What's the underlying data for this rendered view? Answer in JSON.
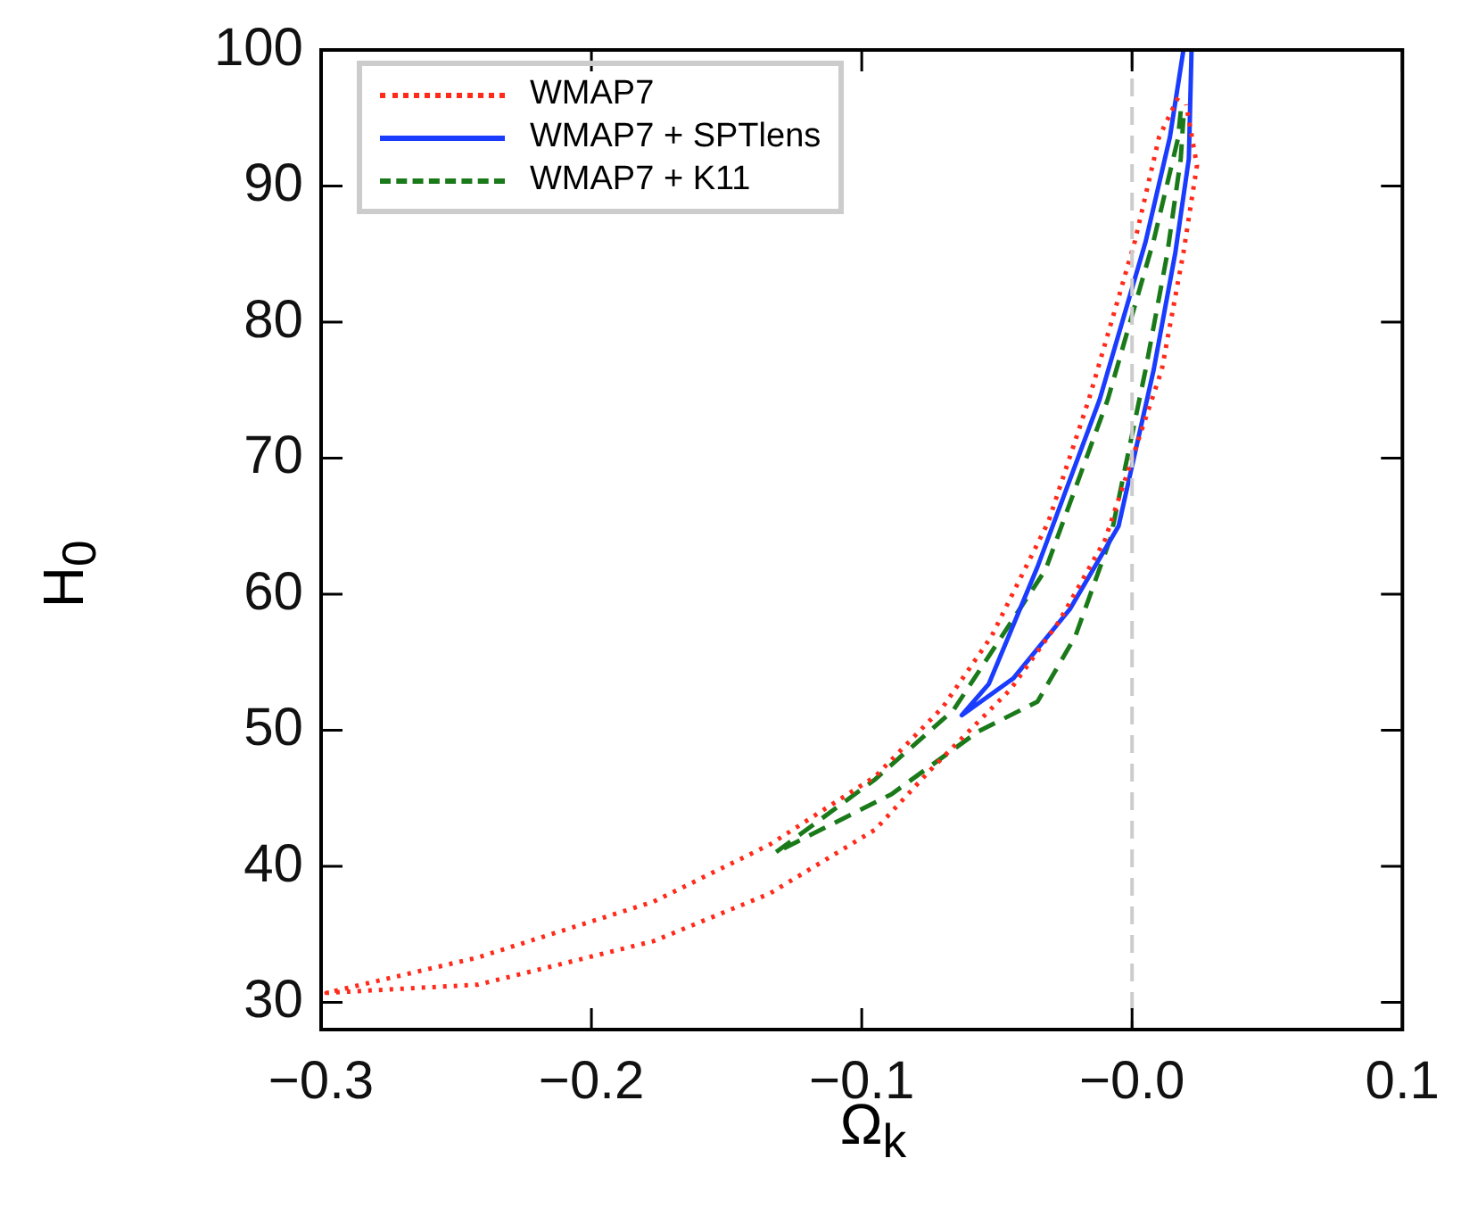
{
  "chart_data": {
    "type": "line",
    "xlabel": "Ω$_{k}$",
    "ylabel": "H$_{0}$",
    "xlim": [
      -0.3,
      0.1
    ],
    "ylim": [
      28,
      100
    ],
    "xticks": [
      {
        "value": -0.3,
        "label": "−0.3"
      },
      {
        "value": -0.2,
        "label": "−0.2"
      },
      {
        "value": -0.1,
        "label": "−0.1"
      },
      {
        "value": 0,
        "label": "−0.0"
      },
      0.1
    ],
    "yticks": [
      30,
      40,
      50,
      60,
      70,
      80,
      90,
      100
    ],
    "grid": false,
    "legend": "top left",
    "marker": "none",
    "ref_lines": [
      {
        "axis": "x",
        "value": 0,
        "color": "#cccccc",
        "line_style": "dashed"
      }
    ],
    "series": [
      {
        "name": "WMAP7",
        "color": "#ff2a1a",
        "line_style": "dotted",
        "x": [
          0.017,
          0.01,
          0.001,
          -0.016,
          -0.031,
          -0.052,
          -0.07,
          -0.095,
          -0.134,
          -0.177,
          -0.242,
          -0.298,
          -0.242,
          -0.177,
          -0.134,
          -0.095,
          -0.075,
          -0.045,
          -0.027,
          -0.01,
          0.011,
          0.019,
          0.024,
          0.02
        ],
        "values": [
          96.5,
          93.6,
          85.9,
          74.3,
          65.3,
          56.9,
          51.7,
          46.6,
          41.6,
          37.4,
          33.3,
          30.7,
          31.3,
          34.5,
          38,
          42.7,
          47,
          53,
          58,
          64,
          76.5,
          85.1,
          91.5,
          96
        ]
      },
      {
        "name": "WMAP7 + SPTlens",
        "color": "#1a3cff",
        "line_style": "solid",
        "x": [
          0.019,
          0.014,
          0.005,
          -0.012,
          -0.035,
          -0.053,
          -0.063,
          -0.044,
          -0.023,
          -0.005,
          0.008,
          0.016,
          0.021,
          0.022
        ],
        "values": [
          100,
          93.6,
          85.9,
          74.3,
          62,
          53.4,
          51.1,
          53.8,
          58.9,
          65,
          76.5,
          85.1,
          92,
          100
        ]
      },
      {
        "name": "WMAP7 + K11",
        "color": "#1a7a1a",
        "line_style": "dashed",
        "x": [
          0.018,
          0.017,
          0.008,
          -0.009,
          -0.032,
          -0.066,
          -0.095,
          -0.132,
          -0.089,
          -0.057,
          -0.035,
          -0.021,
          -0.008,
          0.005,
          0.013,
          0.018,
          0.019
        ],
        "values": [
          95.5,
          93.5,
          86,
          74.3,
          61.8,
          51.5,
          46.4,
          41,
          45.3,
          49.9,
          52.1,
          56.9,
          64.1,
          76.5,
          85,
          92,
          95
        ]
      }
    ]
  }
}
